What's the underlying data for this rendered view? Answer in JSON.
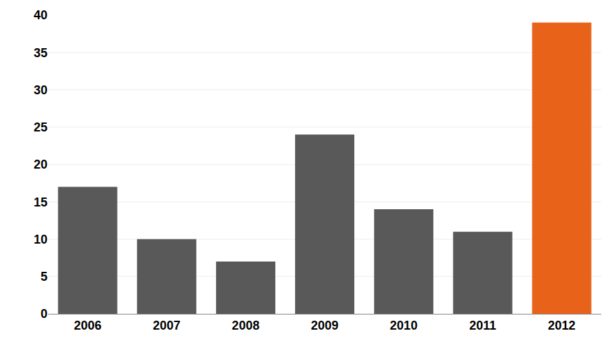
{
  "chart_data": {
    "type": "bar",
    "categories": [
      "2006",
      "2007",
      "2008",
      "2009",
      "2010",
      "2011",
      "2012"
    ],
    "values": [
      17,
      10,
      7,
      24,
      14,
      11,
      39
    ],
    "colors": [
      "#595959",
      "#595959",
      "#595959",
      "#595959",
      "#595959",
      "#595959",
      "#E8621A"
    ],
    "ylim": [
      0,
      40
    ],
    "yticks": [
      0,
      5,
      10,
      15,
      20,
      25,
      30,
      35,
      40
    ],
    "grid": true
  }
}
